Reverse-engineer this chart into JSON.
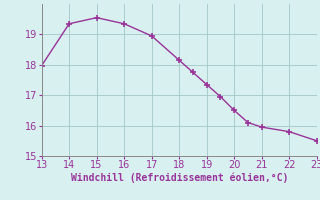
{
  "x": [
    13,
    14,
    15,
    16,
    17,
    18,
    18.5,
    19,
    19.5,
    20,
    20.5,
    21,
    22,
    23
  ],
  "y": [
    17.97,
    19.35,
    19.55,
    19.35,
    18.95,
    18.15,
    17.75,
    17.35,
    16.95,
    16.5,
    16.1,
    15.95,
    15.8,
    15.5
  ],
  "line_color": "#993399",
  "marker": "+",
  "marker_size": 4,
  "marker_lw": 1.2,
  "bg_color": "#d8f0f0",
  "grid_color": "#aacccc",
  "axis_color": "#993399",
  "tick_color": "#993399",
  "spine_color": "#888888",
  "xlabel": "Windchill (Refroidissement éolien,°C)",
  "xlim": [
    13,
    23
  ],
  "ylim": [
    15,
    20
  ],
  "xticks": [
    13,
    14,
    15,
    16,
    17,
    18,
    19,
    20,
    21,
    22,
    23
  ],
  "yticks": [
    15,
    16,
    17,
    18,
    19
  ],
  "font_size": 7,
  "label_font_size": 7,
  "line_width": 1.0
}
